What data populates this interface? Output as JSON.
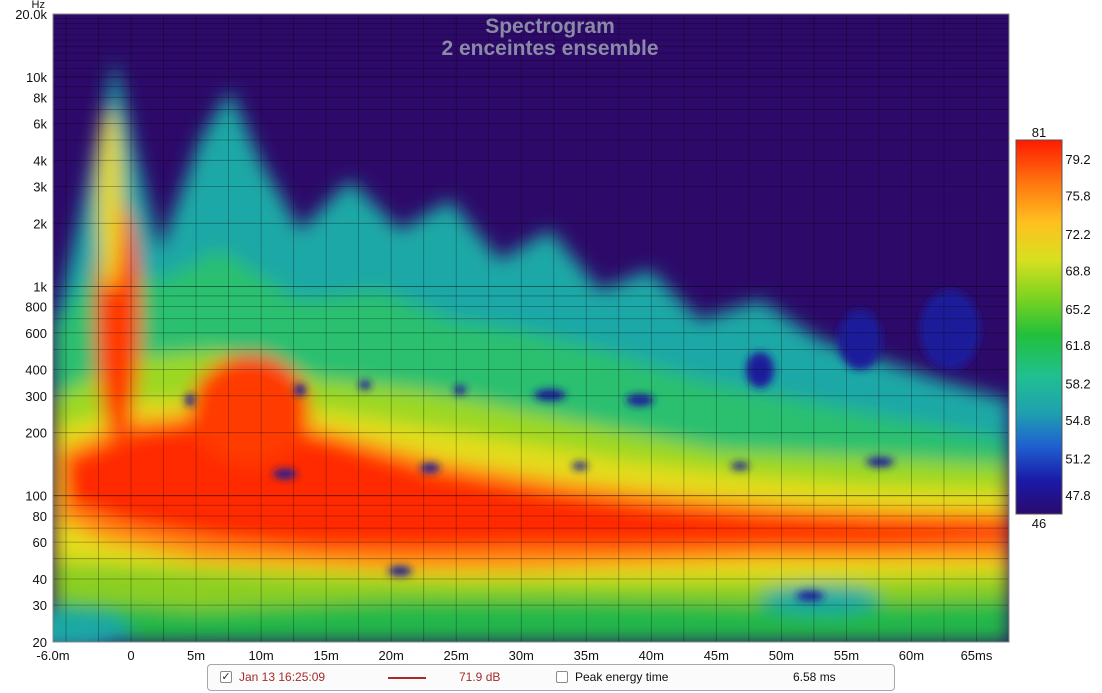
{
  "chart_data": {
    "type": "heatmap",
    "title": "Spectrogram",
    "subtitle": "2 enceintes ensemble",
    "y_unit": "Hz",
    "y_scale": "log",
    "ylim": [
      20,
      20000
    ],
    "x_unit": "ms",
    "xlim": [
      -6.0,
      67.5
    ],
    "x_ticks": [
      {
        "value": -6,
        "label": "-6.0m"
      },
      {
        "value": 0,
        "label": "0"
      },
      {
        "value": 5,
        "label": "5m"
      },
      {
        "value": 10,
        "label": "10m"
      },
      {
        "value": 15,
        "label": "15m"
      },
      {
        "value": 20,
        "label": "20m"
      },
      {
        "value": 25,
        "label": "25m"
      },
      {
        "value": 30,
        "label": "30m"
      },
      {
        "value": 35,
        "label": "35m"
      },
      {
        "value": 40,
        "label": "40m"
      },
      {
        "value": 45,
        "label": "45m"
      },
      {
        "value": 50,
        "label": "50m"
      },
      {
        "value": 55,
        "label": "55m"
      },
      {
        "value": 60,
        "label": "60m"
      },
      {
        "value": 65,
        "label": "65ms"
      }
    ],
    "y_ticks": [
      {
        "value": 20000,
        "label": "20.0k"
      },
      {
        "value": 10000,
        "label": "10k"
      },
      {
        "value": 8000,
        "label": "8k"
      },
      {
        "value": 6000,
        "label": "6k"
      },
      {
        "value": 4000,
        "label": "4k"
      },
      {
        "value": 3000,
        "label": "3k"
      },
      {
        "value": 2000,
        "label": "2k"
      },
      {
        "value": 1000,
        "label": "1k"
      },
      {
        "value": 800,
        "label": "800"
      },
      {
        "value": 600,
        "label": "600"
      },
      {
        "value": 400,
        "label": "400"
      },
      {
        "value": 300,
        "label": "300"
      },
      {
        "value": 200,
        "label": "200"
      },
      {
        "value": 100,
        "label": "100"
      },
      {
        "value": 80,
        "label": "80"
      },
      {
        "value": 60,
        "label": "60"
      },
      {
        "value": 40,
        "label": "40"
      },
      {
        "value": 30,
        "label": "30"
      },
      {
        "value": 20,
        "label": "20"
      }
    ],
    "color_scale": {
      "min": 46,
      "max": 81,
      "min_label": "46",
      "max_label": "81",
      "tick_labels": [
        "79.2",
        "75.8",
        "72.2",
        "68.8",
        "65.2",
        "61.8",
        "58.2",
        "54.8",
        "51.2",
        "47.8"
      ],
      "colors": [
        "#2a0a6e",
        "#1a1aa8",
        "#1f5fd0",
        "#1fa0b0",
        "#20c090",
        "#22c03a",
        "#7ed320",
        "#d8e020",
        "#ffc020",
        "#ff7a10",
        "#ff1a00"
      ]
    },
    "background_color": "#2d0a6a",
    "grid": true
  },
  "legend_bar": {
    "item_checked": "✓",
    "measurement_label": "Jan 13 16:25:09",
    "measurement_color": "#a52a2a",
    "level_value": "71.9 dB",
    "peak_energy_label": "Peak energy time",
    "peak_energy_value": "6.58 ms"
  }
}
